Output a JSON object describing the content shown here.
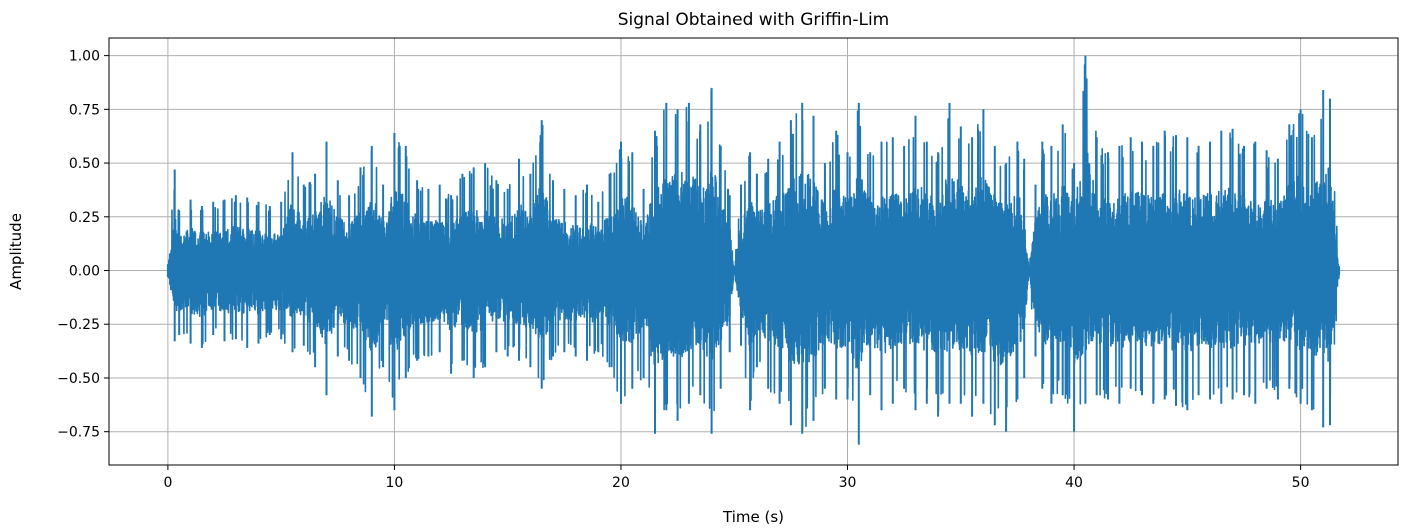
{
  "chart_data": {
    "type": "line",
    "title": "Signal Obtained with Griffin-Lim",
    "xlabel": "Time (s)",
    "ylabel": "Amplitude",
    "xlim": [
      -2.6,
      54.3
    ],
    "ylim": [
      -0.905,
      1.082
    ],
    "x_ticks": [
      0,
      10,
      20,
      30,
      40,
      50
    ],
    "x_tick_labels": [
      "0",
      "10",
      "20",
      "30",
      "40",
      "50"
    ],
    "y_ticks": [
      -0.75,
      -0.5,
      -0.25,
      0.0,
      0.25,
      0.5,
      0.75,
      1.0
    ],
    "y_tick_labels": [
      "−0.75",
      "−0.50",
      "−0.25",
      "0.00",
      "0.25",
      "0.50",
      "0.75",
      "1.00"
    ],
    "grid": true,
    "legend": "none",
    "colors": {
      "line": "#1f77b4",
      "grid": "#b0b0b0",
      "axes": "#000000"
    },
    "series": [
      {
        "duration_s": 51.7,
        "x": [
          0.0,
          0.3,
          0.5,
          1.0,
          1.5,
          2.0,
          2.5,
          3.0,
          3.5,
          4.0,
          4.5,
          5.0,
          5.5,
          6.0,
          6.5,
          7.0,
          7.5,
          8.0,
          8.5,
          9.0,
          9.5,
          10.0,
          10.5,
          11.0,
          11.5,
          12.0,
          12.5,
          13.0,
          13.5,
          14.0,
          14.5,
          15.0,
          15.5,
          16.0,
          16.5,
          17.0,
          17.5,
          18.0,
          18.5,
          19.0,
          19.5,
          20.0,
          20.5,
          21.0,
          21.5,
          22.0,
          22.5,
          23.0,
          23.5,
          24.0,
          24.4,
          24.8,
          25.0,
          25.3,
          25.7,
          26.0,
          26.5,
          27.0,
          27.5,
          28.0,
          28.5,
          29.0,
          29.5,
          30.0,
          30.5,
          31.0,
          31.5,
          32.0,
          32.5,
          33.0,
          33.5,
          34.0,
          34.5,
          35.0,
          35.5,
          36.0,
          36.5,
          37.0,
          37.5,
          37.8,
          38.0,
          38.3,
          38.6,
          39.0,
          39.5,
          40.0,
          40.5,
          41.0,
          41.5,
          42.0,
          42.5,
          43.0,
          43.5,
          44.0,
          44.5,
          45.0,
          45.5,
          46.0,
          46.5,
          47.0,
          47.5,
          48.0,
          48.5,
          49.0,
          49.5,
          50.0,
          50.5,
          51.0,
          51.3,
          51.7
        ],
        "upper": [
          0.03,
          0.47,
          0.28,
          0.33,
          0.3,
          0.32,
          0.33,
          0.35,
          0.34,
          0.32,
          0.3,
          0.32,
          0.55,
          0.4,
          0.45,
          0.6,
          0.42,
          0.35,
          0.48,
          0.58,
          0.4,
          0.64,
          0.58,
          0.42,
          0.38,
          0.4,
          0.35,
          0.45,
          0.48,
          0.5,
          0.42,
          0.38,
          0.52,
          0.45,
          0.7,
          0.42,
          0.38,
          0.35,
          0.4,
          0.32,
          0.45,
          0.6,
          0.55,
          0.38,
          0.65,
          0.78,
          0.75,
          0.78,
          0.68,
          0.85,
          0.58,
          0.35,
          0.02,
          0.4,
          0.55,
          0.45,
          0.52,
          0.6,
          0.7,
          0.78,
          0.72,
          0.5,
          0.65,
          0.55,
          0.78,
          0.55,
          0.6,
          0.62,
          0.58,
          0.72,
          0.6,
          0.55,
          0.78,
          0.67,
          0.62,
          0.75,
          0.58,
          0.5,
          0.6,
          0.52,
          0.02,
          0.4,
          0.6,
          0.58,
          0.68,
          0.5,
          1.0,
          0.62,
          0.55,
          0.58,
          0.62,
          0.6,
          0.58,
          0.65,
          0.63,
          0.62,
          0.58,
          0.6,
          0.65,
          0.66,
          0.58,
          0.6,
          0.56,
          0.52,
          0.68,
          0.75,
          0.62,
          0.84,
          0.8,
          0.02
        ],
        "lower": [
          -0.03,
          -0.33,
          -0.3,
          -0.34,
          -0.36,
          -0.3,
          -0.33,
          -0.32,
          -0.36,
          -0.34,
          -0.3,
          -0.32,
          -0.38,
          -0.35,
          -0.45,
          -0.58,
          -0.4,
          -0.42,
          -0.5,
          -0.68,
          -0.45,
          -0.65,
          -0.5,
          -0.42,
          -0.4,
          -0.38,
          -0.48,
          -0.42,
          -0.5,
          -0.45,
          -0.38,
          -0.4,
          -0.42,
          -0.45,
          -0.55,
          -0.4,
          -0.38,
          -0.4,
          -0.42,
          -0.38,
          -0.45,
          -0.62,
          -0.55,
          -0.5,
          -0.76,
          -0.65,
          -0.7,
          -0.62,
          -0.58,
          -0.76,
          -0.55,
          -0.38,
          -0.02,
          -0.35,
          -0.65,
          -0.45,
          -0.55,
          -0.62,
          -0.72,
          -0.76,
          -0.7,
          -0.55,
          -0.6,
          -0.6,
          -0.81,
          -0.58,
          -0.65,
          -0.62,
          -0.55,
          -0.65,
          -0.62,
          -0.68,
          -0.62,
          -0.62,
          -0.68,
          -0.62,
          -0.72,
          -0.75,
          -0.6,
          -0.5,
          -0.02,
          -0.4,
          -0.55,
          -0.62,
          -0.58,
          -0.75,
          -0.62,
          -0.58,
          -0.6,
          -0.62,
          -0.55,
          -0.58,
          -0.62,
          -0.6,
          -0.63,
          -0.65,
          -0.58,
          -0.6,
          -0.62,
          -0.6,
          -0.58,
          -0.62,
          -0.55,
          -0.6,
          -0.55,
          -0.62,
          -0.65,
          -0.73,
          -0.72,
          -0.02
        ]
      }
    ]
  }
}
